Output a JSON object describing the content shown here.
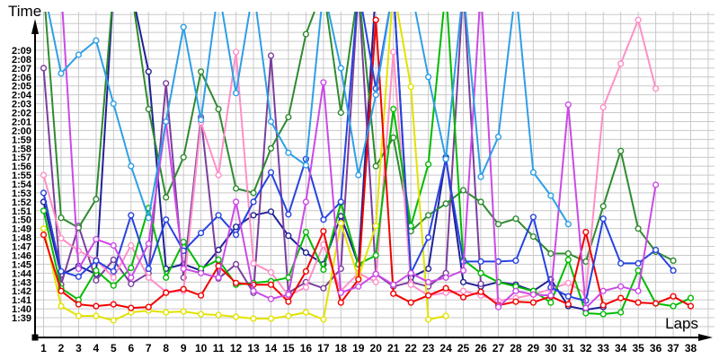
{
  "axes": {
    "y_title": "Time",
    "x_title": "Laps",
    "y_ticks": [
      "2:09",
      "2:08",
      "2:07",
      "2:06",
      "2:05",
      "2:04",
      "2:03",
      "2:02",
      "2:01",
      "2:00",
      "1:59",
      "1:58",
      "1:57",
      "1:56",
      "1:55",
      "1:54",
      "1:53",
      "1:52",
      "1:51",
      "1:50",
      "1:49",
      "1:48",
      "1:47",
      "1:46",
      "1:45",
      "1:44",
      "1:43",
      "1:42",
      "1:41",
      "1:40",
      "1:39"
    ],
    "x_ticks": [
      "1",
      "2",
      "3",
      "4",
      "5",
      "6",
      "7",
      "8",
      "9",
      "10",
      "11",
      "12",
      "13",
      "14",
      "15",
      "16",
      "17",
      "18",
      "19",
      "20",
      "21",
      "22",
      "23",
      "24",
      "25",
      "26",
      "27",
      "28",
      "29",
      "30",
      "31",
      "32",
      "33",
      "34",
      "35",
      "36",
      "37",
      "38"
    ]
  },
  "colors": {
    "background": "#ffffff",
    "grid": "#c9c9c9",
    "axis": "#000000",
    "text": "#000000"
  },
  "chart_data": {
    "type": "line",
    "title": "",
    "xlabel": "Laps",
    "ylabel": "Time",
    "x_range": [
      1,
      38
    ],
    "y_axis": {
      "bottom_label": "1:39",
      "top_label": "2:09",
      "step": "1 second",
      "values_encoding": "lap time in seconds (99 = 1:39, 129 = 2:09); 136 = spike clipped above chart top; null = no lap recorded"
    },
    "grid": true,
    "legend": "none",
    "marker": "open-circle",
    "x": [
      1,
      2,
      3,
      4,
      5,
      6,
      7,
      8,
      9,
      10,
      11,
      12,
      13,
      14,
      15,
      16,
      17,
      18,
      19,
      20,
      21,
      22,
      23,
      24,
      25,
      26,
      27,
      28,
      29,
      30,
      31,
      32,
      33,
      34,
      35,
      36,
      37,
      38
    ],
    "series": [
      {
        "name": "navy",
        "color": "#202095",
        "values": [
          112,
          103.8,
          104.8,
          103.9,
          136,
          136,
          126.6,
          104.5,
          105,
          104.3,
          106.6,
          109.2,
          110.5,
          110.9,
          108.2,
          106.3,
          105,
          110.4,
          105,
          136,
          136,
          103.5,
          104.5,
          117,
          103,
          102.5,
          103,
          102.7,
          102,
          103.3,
          100.3,
          99.9,
          100.2,
          null,
          null,
          null,
          null,
          null
        ]
      },
      {
        "name": "purple",
        "color": "#7b3f9e",
        "values": [
          127,
          102.7,
          109.3,
          103.2,
          105.5,
          102.8,
          104,
          125.3,
          103.5,
          121.5,
          103.4,
          105,
          101.8,
          128.4,
          101.8,
          103,
          102.3,
          104.5,
          136,
          103.9,
          102.5,
          103,
          102.5,
          104,
          136,
          102.8,
          null,
          null,
          null,
          null,
          null,
          null,
          null,
          null,
          null,
          null,
          null,
          null
        ]
      },
      {
        "name": "darkgreen",
        "color": "#2e8b2e",
        "values": [
          136,
          110.2,
          109.1,
          112.3,
          136,
          136,
          122.4,
          112.5,
          117,
          126.6,
          122.4,
          113.5,
          113,
          118,
          121.5,
          130.8,
          136,
          122,
          136,
          116,
          119.2,
          108.7,
          110.5,
          111.8,
          113.3,
          112,
          109.5,
          110.1,
          108.1,
          106.2,
          106.2,
          105.3,
          111.5,
          117.7,
          109,
          106.4,
          105.4,
          null
        ]
      },
      {
        "name": "pink",
        "color": "#ff8fc8",
        "values": [
          115,
          107.9,
          106.5,
          105.5,
          103.5,
          107.1,
          103.5,
          101.9,
          102,
          120.9,
          115,
          128.8,
          105.1,
          104.1,
          101.5,
          102.4,
          107.2,
          102,
          104,
          103,
          128.8,
          102.7,
          101.5,
          101.8,
          102,
          101.5,
          100.9,
          101.2,
          101.6,
          102.2,
          102.9,
          101.7,
          122.6,
          127.5,
          132.4,
          124.7,
          null,
          null
        ]
      },
      {
        "name": "green",
        "color": "#00bb00",
        "values": [
          111,
          102.3,
          101,
          104.3,
          102.6,
          104.6,
          111.3,
          103.5,
          107.5,
          104.5,
          105.5,
          102.7,
          102.9,
          103.1,
          103.5,
          108.6,
          104.4,
          111.9,
          105,
          106,
          122.4,
          109.3,
          116.2,
          136,
          105.5,
          104,
          103,
          102.5,
          102,
          100.7,
          105.5,
          99.5,
          99.4,
          99.6,
          104.3,
          100.6,
          100.3,
          101.2
        ]
      },
      {
        "name": "yellow",
        "color": "#e2e200",
        "values": [
          109,
          100.3,
          99.2,
          99.2,
          98.7,
          99.6,
          99.8,
          99.6,
          99.7,
          99.4,
          99.3,
          99.1,
          98.9,
          98.9,
          99.2,
          99.6,
          98.8,
          109.6,
          103.5,
          109.3,
          136,
          124.9,
          98.8,
          99.2,
          null,
          null,
          null,
          null,
          null,
          null,
          null,
          null,
          null,
          null,
          null,
          null,
          null,
          null
        ]
      },
      {
        "name": "red",
        "color": "#f20000",
        "values": [
          108.3,
          102,
          100.5,
          100.3,
          100.5,
          100.1,
          100.2,
          101.8,
          102.2,
          101.5,
          104.8,
          102.9,
          102.7,
          102.7,
          100.8,
          104.2,
          108.7,
          100.7,
          103.3,
          132.4,
          101.7,
          100.7,
          101.5,
          102.3,
          101.3,
          101.9,
          100.4,
          100.8,
          100.7,
          101.4,
          100.5,
          108.6,
          100.4,
          101.2,
          100.7,
          100.6,
          101.4,
          100.3
        ]
      },
      {
        "name": "blue",
        "color": "#2743e0",
        "values": [
          113,
          104.2,
          103.6,
          105.4,
          104.2,
          110.5,
          104.5,
          110,
          106.5,
          108.5,
          110.5,
          108.3,
          112,
          115.3,
          110.6,
          116.8,
          110,
          112,
          136,
          124.7,
          136,
          104,
          108,
          116.8,
          105.3,
          105.3,
          105.3,
          105.4,
          110.3,
          102.4,
          101.4,
          100.9,
          110.1,
          105.1,
          105.1,
          106.6,
          104.3,
          null
        ]
      },
      {
        "name": "magenta",
        "color": "#cb4ae6",
        "values": [
          136,
          136,
          104.5,
          107.8,
          107.1,
          103.5,
          107.3,
          121,
          104.5,
          104,
          103.5,
          112,
          102,
          101.1,
          101.6,
          112,
          125.4,
          101.8,
          102.5,
          103.9,
          102.7,
          104,
          103,
          103.5,
          104.3,
          136,
          100.2,
          102,
          101.6,
          101.5,
          122.9,
          100.1,
          102,
          102.5,
          102,
          113.9,
          null,
          null
        ]
      },
      {
        "name": "lightblue",
        "color": "#2e9fe6",
        "values": [
          136,
          126.4,
          128.5,
          130.1,
          123,
          116,
          110.2,
          121,
          131.6,
          121.2,
          136,
          124.2,
          136,
          121,
          117.5,
          116.1,
          136,
          127,
          115,
          124,
          136,
          136,
          126,
          116.8,
          136,
          114.8,
          119.3,
          136,
          115.3,
          112.7,
          109.5,
          null,
          null,
          null,
          null,
          null,
          null,
          null
        ]
      }
    ]
  }
}
